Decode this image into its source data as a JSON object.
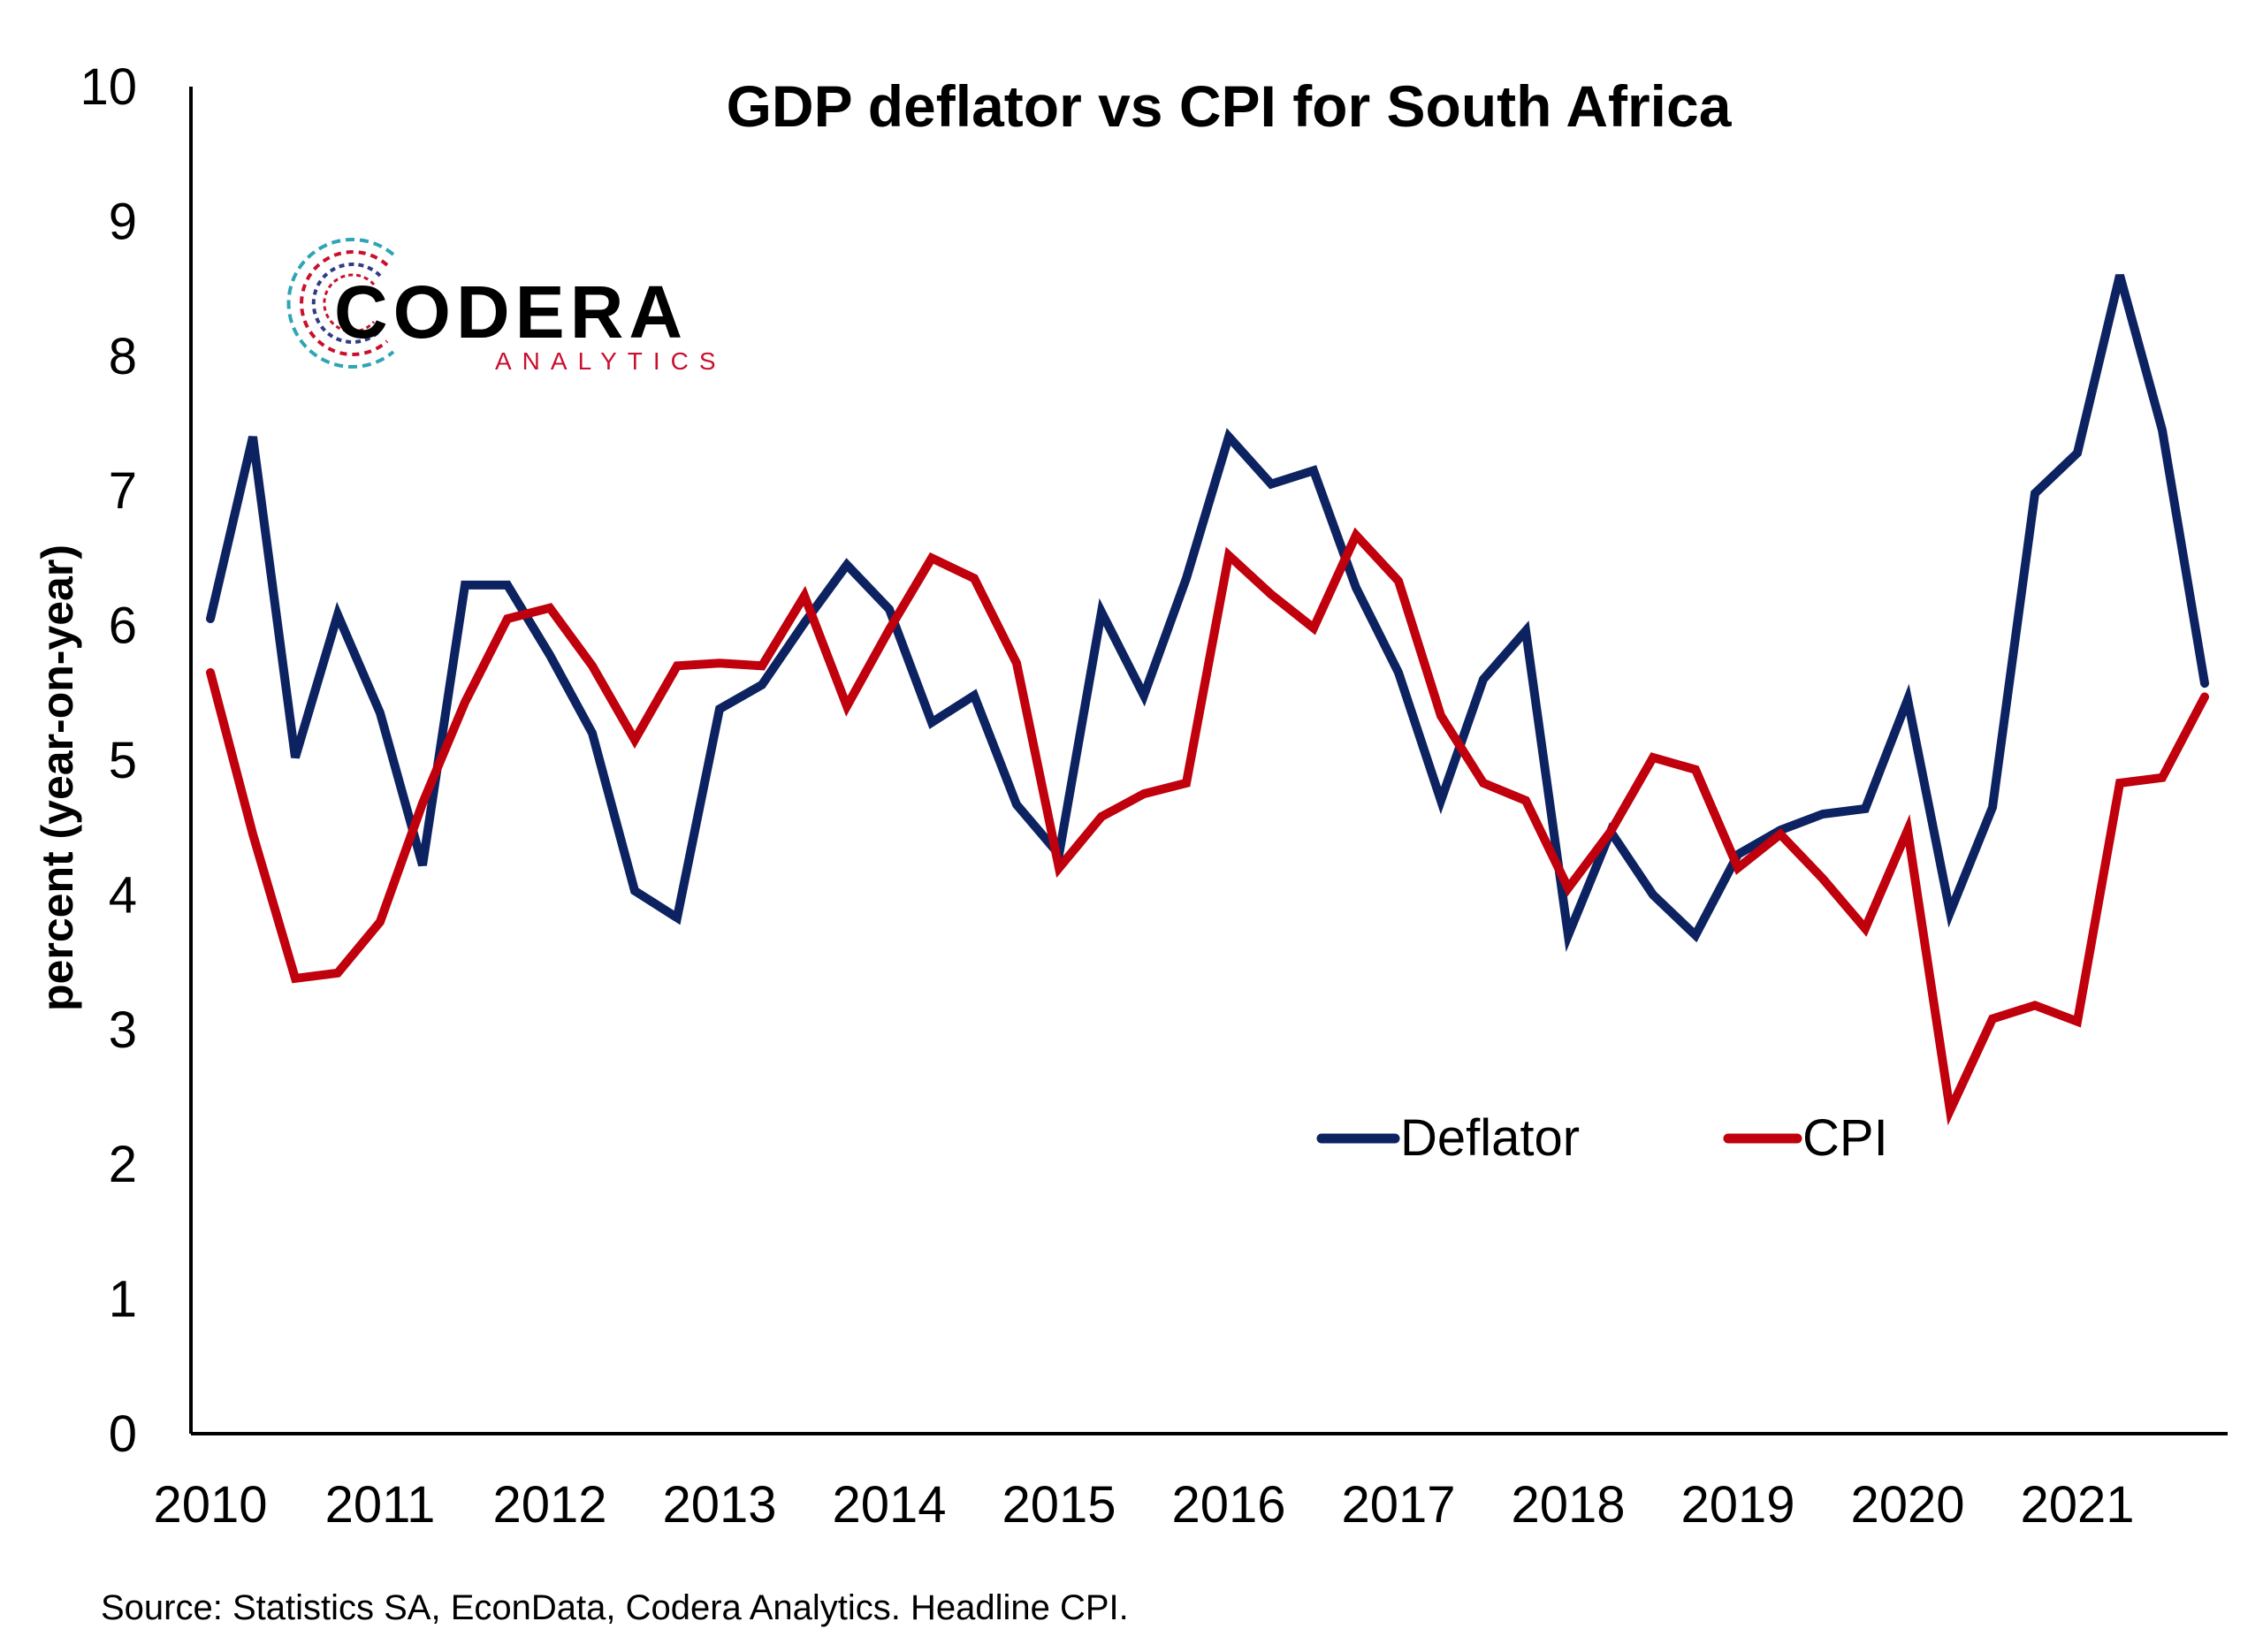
{
  "chart_data": {
    "type": "line",
    "title": "GDP deflator vs CPI for South Africa",
    "ylabel": "percent (year-on-year)",
    "xlabel": "",
    "ylim": [
      0,
      10
    ],
    "yticks": [
      "0",
      "1",
      "2",
      "3",
      "4",
      "5",
      "6",
      "7",
      "8",
      "9",
      "10"
    ],
    "xticks": [
      "2010",
      "2011",
      "2012",
      "2013",
      "2014",
      "2015",
      "2016",
      "2017",
      "2018",
      "2019",
      "2020",
      "2021"
    ],
    "grid": false,
    "legend_position": "bottom-right",
    "source": "Source: Statistics SA, EconData, Codera Analytics. Headline CPI.",
    "x": [
      "2010Q1",
      "2010Q2",
      "2010Q3",
      "2010Q4",
      "2011Q1",
      "2011Q2",
      "2011Q3",
      "2011Q4",
      "2012Q1",
      "2012Q2",
      "2012Q3",
      "2012Q4",
      "2013Q1",
      "2013Q2",
      "2013Q3",
      "2013Q4",
      "2014Q1",
      "2014Q2",
      "2014Q3",
      "2014Q4",
      "2015Q1",
      "2015Q2",
      "2015Q3",
      "2015Q4",
      "2016Q1",
      "2016Q2",
      "2016Q3",
      "2016Q4",
      "2017Q1",
      "2017Q2",
      "2017Q3",
      "2017Q4",
      "2018Q1",
      "2018Q2",
      "2018Q3",
      "2018Q4",
      "2019Q1",
      "2019Q2",
      "2019Q3",
      "2019Q4",
      "2020Q1",
      "2020Q2",
      "2020Q3",
      "2020Q4",
      "2021Q1",
      "2021Q2",
      "2021Q3",
      "2021Q4"
    ],
    "series": [
      {
        "name": "Deflator",
        "color": "#0d2361",
        "values": [
          6.05,
          7.4,
          5.02,
          6.08,
          5.35,
          4.22,
          6.3,
          6.3,
          5.78,
          5.2,
          4.03,
          3.83,
          5.38,
          5.56,
          6.02,
          6.45,
          6.12,
          5.28,
          5.48,
          4.67,
          4.3,
          6.1,
          5.48,
          6.35,
          7.4,
          7.05,
          7.15,
          6.28,
          5.65,
          4.7,
          5.6,
          5.96,
          3.7,
          4.47,
          4.0,
          3.7,
          4.3,
          4.48,
          4.6,
          4.64,
          5.45,
          3.87,
          4.65,
          6.98,
          7.28,
          8.6,
          7.45,
          5.57
        ]
      },
      {
        "name": "CPI",
        "color": "#c0000c",
        "values": [
          5.65,
          4.45,
          3.38,
          3.42,
          3.8,
          4.68,
          5.43,
          6.05,
          6.13,
          5.7,
          5.15,
          5.7,
          5.72,
          5.7,
          6.22,
          5.4,
          5.97,
          6.5,
          6.35,
          5.72,
          4.2,
          4.58,
          4.75,
          4.83,
          6.52,
          6.23,
          5.98,
          6.67,
          6.33,
          5.33,
          4.83,
          4.7,
          4.05,
          4.47,
          5.02,
          4.93,
          4.2,
          4.45,
          4.12,
          3.75,
          4.48,
          2.4,
          3.08,
          3.18,
          3.06,
          4.83,
          4.87,
          5.47
        ]
      }
    ]
  },
  "logo": {
    "name": "CODERA",
    "sub": "ANALYTICS",
    "colors": [
      "#2e3b86",
      "#c8102e",
      "#2fa4b5"
    ]
  }
}
